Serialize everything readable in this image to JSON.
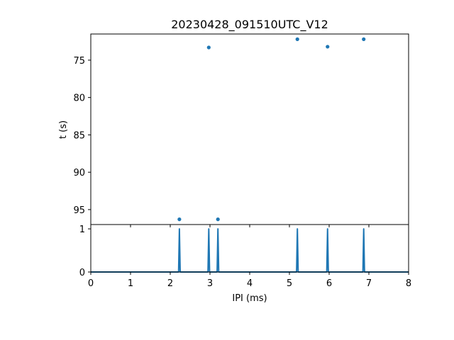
{
  "chart_data": [
    {
      "type": "scatter",
      "title": "20230428_091510UTC_V12",
      "xlabel": "",
      "ylabel": "t (s)",
      "xlim": [
        0,
        8
      ],
      "ylim": [
        97,
        71.5
      ],
      "y_inverted": true,
      "yticks": [
        75,
        80,
        85,
        90,
        95
      ],
      "x_tick_labels_shown": false,
      "color": "#1f77b4",
      "points": [
        {
          "x": 2.23,
          "y": 96.3
        },
        {
          "x": 2.97,
          "y": 73.3
        },
        {
          "x": 3.2,
          "y": 96.3
        },
        {
          "x": 5.2,
          "y": 72.2
        },
        {
          "x": 5.96,
          "y": 73.2
        },
        {
          "x": 6.87,
          "y": 72.2
        }
      ]
    },
    {
      "type": "line",
      "title": "",
      "xlabel": "IPI (ms)",
      "ylabel": "",
      "xlim": [
        0,
        8
      ],
      "ylim": [
        0,
        1.1
      ],
      "xticks": [
        0,
        1,
        2,
        3,
        4,
        5,
        6,
        7,
        8
      ],
      "yticks": [
        0,
        1
      ],
      "color": "#1f77b4",
      "spikes": [
        {
          "x": 2.23,
          "y": 1
        },
        {
          "x": 2.97,
          "y": 1
        },
        {
          "x": 3.2,
          "y": 1
        },
        {
          "x": 5.2,
          "y": 1
        },
        {
          "x": 5.96,
          "y": 1
        },
        {
          "x": 6.87,
          "y": 1
        }
      ]
    }
  ]
}
